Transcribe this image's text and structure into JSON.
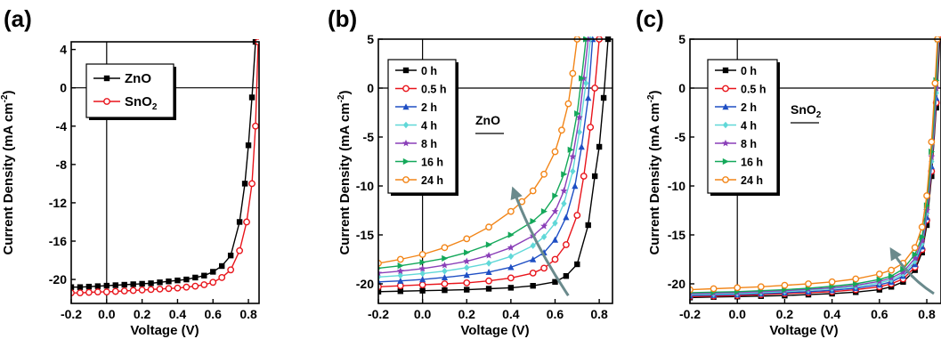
{
  "figure": {
    "panels": [
      "a",
      "b",
      "c"
    ]
  },
  "chart_data": [
    {
      "panel_label": "(a)",
      "type": "line",
      "xlabel": "Voltage (V)",
      "ylabel": "Current Density (mA cm",
      "ylabel_sup": "-2",
      "ylabel_close": ")",
      "xlim": [
        -0.2,
        0.86
      ],
      "ylim": [
        -22.5,
        4.8
      ],
      "xticks": [
        "-0.2",
        "0.0",
        "0.2",
        "0.4",
        "0.6",
        "0.8"
      ],
      "yticks": [
        "-20",
        "-16",
        "-12",
        "-8",
        "-4",
        "0",
        "4"
      ],
      "series": [
        {
          "name": "ZnO",
          "name_sub": "",
          "color": "#000000",
          "marker": "square",
          "x": [
            -0.2,
            -0.15,
            -0.1,
            -0.05,
            0,
            0.05,
            0.1,
            0.15,
            0.2,
            0.25,
            0.3,
            0.35,
            0.4,
            0.45,
            0.5,
            0.55,
            0.6,
            0.65,
            0.7,
            0.75,
            0.78,
            0.8,
            0.82,
            0.84
          ],
          "y": [
            -20.8,
            -20.8,
            -20.75,
            -20.7,
            -20.65,
            -20.6,
            -20.55,
            -20.5,
            -20.45,
            -20.4,
            -20.3,
            -20.2,
            -20.1,
            -20.0,
            -19.8,
            -19.6,
            -19.2,
            -18.6,
            -17.5,
            -14.0,
            -10.0,
            -6.0,
            -1.0,
            4.8
          ]
        },
        {
          "name": "SnO",
          "name_sub": "2",
          "color": "#e8141b",
          "marker": "circle",
          "x": [
            -0.2,
            -0.15,
            -0.1,
            -0.05,
            0,
            0.05,
            0.1,
            0.15,
            0.2,
            0.25,
            0.3,
            0.35,
            0.4,
            0.45,
            0.5,
            0.55,
            0.6,
            0.65,
            0.7,
            0.75,
            0.79,
            0.82,
            0.84,
            0.855
          ],
          "y": [
            -21.4,
            -21.4,
            -21.35,
            -21.3,
            -21.3,
            -21.25,
            -21.2,
            -21.15,
            -21.1,
            -21.05,
            -21.0,
            -20.95,
            -20.9,
            -20.8,
            -20.7,
            -20.55,
            -20.3,
            -19.8,
            -19.0,
            -17.0,
            -14.0,
            -10.0,
            -4.0,
            4.8
          ]
        }
      ]
    },
    {
      "panel_label": "(b)",
      "type": "line",
      "xlabel": "Voltage (V)",
      "ylabel": "Current Density (mA cm",
      "ylabel_sup": "-2",
      "ylabel_close": ")",
      "annotation": "ZnO",
      "annotation_sub": "",
      "xlim": [
        -0.2,
        0.86
      ],
      "ylim": [
        -22,
        5
      ],
      "xticks": [
        "-0.2",
        "0.0",
        "0.2",
        "0.4",
        "0.6",
        "0.8"
      ],
      "yticks": [
        "-20",
        "-15",
        "-10",
        "-5",
        "0",
        "5"
      ],
      "series": [
        {
          "name": "0 h",
          "color": "#000000",
          "marker": "square",
          "x": [
            -0.2,
            -0.1,
            0,
            0.1,
            0.2,
            0.3,
            0.4,
            0.5,
            0.6,
            0.65,
            0.7,
            0.75,
            0.78,
            0.8,
            0.82,
            0.84
          ],
          "y": [
            -20.8,
            -20.75,
            -20.7,
            -20.65,
            -20.6,
            -20.5,
            -20.4,
            -20.2,
            -19.8,
            -19.2,
            -18.0,
            -14.0,
            -9.0,
            -6.0,
            -1.0,
            5.0
          ]
        },
        {
          "name": "0.5 h",
          "color": "#e8141b",
          "marker": "circle",
          "x": [
            -0.2,
            -0.1,
            0,
            0.1,
            0.2,
            0.3,
            0.4,
            0.5,
            0.55,
            0.6,
            0.65,
            0.7,
            0.73,
            0.76,
            0.78,
            0.8
          ],
          "y": [
            -20.3,
            -20.2,
            -20.1,
            -20.0,
            -19.9,
            -19.7,
            -19.4,
            -18.9,
            -18.4,
            -17.5,
            -16.0,
            -13.0,
            -9.0,
            -4.0,
            0.0,
            5.0
          ]
        },
        {
          "name": "2 h",
          "color": "#1f4fc4",
          "marker": "triangle-up",
          "x": [
            -0.2,
            -0.1,
            0,
            0.1,
            0.2,
            0.3,
            0.4,
            0.5,
            0.55,
            0.6,
            0.65,
            0.69,
            0.72,
            0.75,
            0.77
          ],
          "y": [
            -19.8,
            -19.7,
            -19.55,
            -19.35,
            -19.1,
            -18.8,
            -18.3,
            -17.5,
            -16.8,
            -15.5,
            -13.2,
            -10.0,
            -6.0,
            -1.0,
            5.0
          ]
        },
        {
          "name": "4 h",
          "color": "#60d8d8",
          "marker": "diamond",
          "x": [
            -0.2,
            -0.1,
            0,
            0.1,
            0.2,
            0.3,
            0.4,
            0.5,
            0.55,
            0.6,
            0.64,
            0.68,
            0.71,
            0.74,
            0.76
          ],
          "y": [
            -19.3,
            -19.15,
            -18.95,
            -18.7,
            -18.35,
            -17.9,
            -17.2,
            -16.1,
            -15.2,
            -13.8,
            -11.8,
            -8.5,
            -4.5,
            0.5,
            5.0
          ]
        },
        {
          "name": "8 h",
          "color": "#8a3fb8",
          "marker": "star",
          "x": [
            -0.2,
            -0.1,
            0,
            0.1,
            0.2,
            0.3,
            0.4,
            0.5,
            0.55,
            0.6,
            0.64,
            0.68,
            0.71,
            0.73,
            0.75
          ],
          "y": [
            -18.9,
            -18.7,
            -18.45,
            -18.1,
            -17.7,
            -17.1,
            -16.3,
            -15.1,
            -14.1,
            -12.6,
            -10.5,
            -7.0,
            -3.0,
            1.0,
            5.0
          ]
        },
        {
          "name": "16 h",
          "color": "#14a85a",
          "marker": "triangle-right",
          "x": [
            -0.2,
            -0.1,
            0,
            0.1,
            0.2,
            0.3,
            0.4,
            0.5,
            0.55,
            0.6,
            0.64,
            0.67,
            0.7,
            0.72,
            0.74
          ],
          "y": [
            -18.4,
            -18.15,
            -17.8,
            -17.4,
            -16.8,
            -16.0,
            -15.0,
            -13.6,
            -12.6,
            -11.0,
            -8.8,
            -6.3,
            -2.6,
            1.0,
            5.0
          ]
        },
        {
          "name": "24 h",
          "color": "#f28518",
          "marker": "circle-open",
          "x": [
            -0.2,
            -0.1,
            0,
            0.1,
            0.2,
            0.3,
            0.4,
            0.45,
            0.5,
            0.55,
            0.6,
            0.63,
            0.66,
            0.68,
            0.7
          ],
          "y": [
            -17.9,
            -17.5,
            -17.0,
            -16.3,
            -15.4,
            -14.2,
            -12.6,
            -11.6,
            -10.5,
            -8.8,
            -6.5,
            -4.3,
            -1.6,
            1.5,
            5.0
          ]
        }
      ]
    },
    {
      "panel_label": "(c)",
      "type": "line",
      "xlabel": "Voltage (V)",
      "ylabel": "Current Density (mA cm",
      "ylabel_sup": "-2",
      "ylabel_close": ")",
      "annotation": "SnO",
      "annotation_sub": "2",
      "xlim": [
        -0.2,
        0.86
      ],
      "ylim": [
        -22,
        5
      ],
      "xticks": [
        "-0.2",
        "0.0",
        "0.2",
        "0.4",
        "0.6",
        "0.8"
      ],
      "yticks": [
        "-20",
        "-15",
        "-10",
        "-5",
        "0",
        "5"
      ],
      "series": [
        {
          "name": "0 h",
          "color": "#000000",
          "marker": "square",
          "x": [
            -0.2,
            -0.1,
            0,
            0.1,
            0.2,
            0.3,
            0.4,
            0.5,
            0.6,
            0.65,
            0.7,
            0.75,
            0.78,
            0.8,
            0.82,
            0.84,
            0.855
          ],
          "y": [
            -21.4,
            -21.35,
            -21.3,
            -21.25,
            -21.2,
            -21.1,
            -21.0,
            -20.85,
            -20.6,
            -20.3,
            -19.8,
            -18.6,
            -16.8,
            -14.0,
            -9.0,
            -2.0,
            5.0
          ]
        },
        {
          "name": "0.5 h",
          "color": "#e8141b",
          "marker": "circle",
          "x": [
            -0.2,
            -0.1,
            0,
            0.1,
            0.2,
            0.3,
            0.4,
            0.5,
            0.6,
            0.65,
            0.7,
            0.75,
            0.78,
            0.8,
            0.82,
            0.84,
            0.852
          ],
          "y": [
            -21.3,
            -21.25,
            -21.2,
            -21.1,
            -21.0,
            -20.9,
            -20.8,
            -20.6,
            -20.3,
            -20.0,
            -19.5,
            -18.3,
            -16.5,
            -13.5,
            -8.5,
            -1.5,
            5.0
          ]
        },
        {
          "name": "2 h",
          "color": "#1f4fc4",
          "marker": "triangle-up",
          "x": [
            -0.2,
            -0.1,
            0,
            0.1,
            0.2,
            0.3,
            0.4,
            0.5,
            0.6,
            0.65,
            0.7,
            0.75,
            0.78,
            0.8,
            0.82,
            0.84,
            0.85
          ],
          "y": [
            -21.2,
            -21.15,
            -21.1,
            -21.0,
            -20.9,
            -20.8,
            -20.65,
            -20.45,
            -20.1,
            -19.8,
            -19.2,
            -18.0,
            -16.2,
            -13.2,
            -8.0,
            -1.0,
            5.0
          ]
        },
        {
          "name": "4 h",
          "color": "#60d8d8",
          "marker": "diamond",
          "x": [
            -0.2,
            -0.1,
            0,
            0.1,
            0.2,
            0.3,
            0.4,
            0.5,
            0.6,
            0.65,
            0.7,
            0.75,
            0.78,
            0.8,
            0.82,
            0.84,
            0.85
          ],
          "y": [
            -21.1,
            -21.05,
            -21.0,
            -20.9,
            -20.8,
            -20.65,
            -20.5,
            -20.3,
            -19.9,
            -19.6,
            -19.0,
            -17.7,
            -15.9,
            -12.8,
            -7.5,
            -0.5,
            5.0
          ]
        },
        {
          "name": "8 h",
          "color": "#8a3fb8",
          "marker": "star",
          "x": [
            -0.2,
            -0.1,
            0,
            0.1,
            0.2,
            0.3,
            0.4,
            0.5,
            0.6,
            0.65,
            0.7,
            0.75,
            0.78,
            0.8,
            0.82,
            0.84,
            0.848
          ],
          "y": [
            -21.0,
            -20.95,
            -20.9,
            -20.8,
            -20.7,
            -20.55,
            -20.4,
            -20.15,
            -19.75,
            -19.4,
            -18.8,
            -17.4,
            -15.6,
            -12.5,
            -7.0,
            0.0,
            5.0
          ]
        },
        {
          "name": "16 h",
          "color": "#14a85a",
          "marker": "triangle-right",
          "x": [
            -0.2,
            -0.1,
            0,
            0.1,
            0.2,
            0.3,
            0.4,
            0.5,
            0.6,
            0.65,
            0.7,
            0.75,
            0.78,
            0.8,
            0.82,
            0.84,
            0.846
          ],
          "y": [
            -20.9,
            -20.85,
            -20.8,
            -20.7,
            -20.6,
            -20.45,
            -20.25,
            -20.0,
            -19.55,
            -19.2,
            -18.5,
            -17.0,
            -15.2,
            -12.0,
            -6.5,
            0.8,
            5.0
          ]
        },
        {
          "name": "24 h",
          "color": "#f28518",
          "marker": "circle-open",
          "x": [
            -0.2,
            -0.1,
            0,
            0.1,
            0.2,
            0.3,
            0.4,
            0.5,
            0.6,
            0.65,
            0.7,
            0.75,
            0.78,
            0.8,
            0.82,
            0.835,
            0.845
          ],
          "y": [
            -20.6,
            -20.5,
            -20.4,
            -20.3,
            -20.15,
            -20.0,
            -19.8,
            -19.5,
            -19.0,
            -18.6,
            -17.9,
            -16.3,
            -14.2,
            -11.0,
            -5.5,
            0.5,
            5.0
          ]
        }
      ]
    }
  ]
}
